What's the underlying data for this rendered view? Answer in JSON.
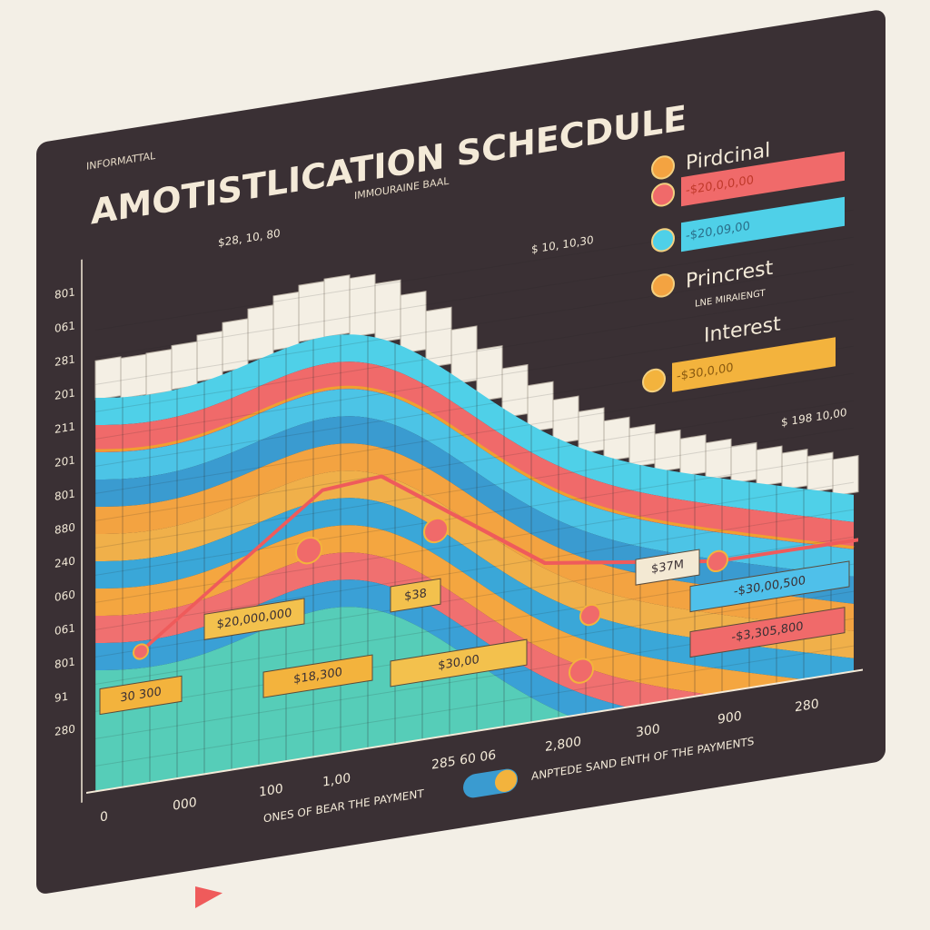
{
  "board": {
    "eyebrow": "INFORMATTAL",
    "title": "AMOTISTLICATION SCHECDULE",
    "subtitle": "IMMOURAINE BAAL"
  },
  "legend": [
    "Pirdcinal",
    "-$20,0,0,00",
    "-$20,09,00",
    "Princrest",
    "LNE MIRAIENGT",
    "Interest",
    "-$30,0,00"
  ],
  "annotations": [
    "$28, 10, 80",
    "$ 10, 10,30",
    "$ 198 10,00"
  ],
  "y_labels": [
    "801",
    "061",
    "281",
    "201",
    "211",
    "201",
    "801",
    "880",
    "240",
    "060",
    "061",
    "801",
    "91",
    "280"
  ],
  "x_labels": [
    "0",
    "000",
    "100",
    "1,00",
    "285 60 06",
    "2,800",
    "300",
    "900",
    "280"
  ],
  "box_labels": [
    "$20,000,000",
    "$38",
    "$37M",
    "-$30,00,500",
    "-$3,305,800",
    "30 300",
    "$18,300",
    "$30,00"
  ],
  "footer": [
    "ONES OF BEAR THE PAYMENT",
    "ANPTEDE SAND ENTH OF THE PAYMENTS"
  ]
}
